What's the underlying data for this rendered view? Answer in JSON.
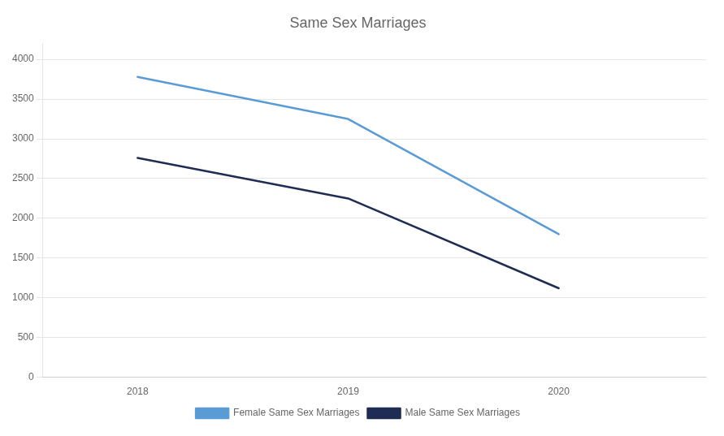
{
  "chart_data": {
    "type": "line",
    "title": "Same Sex Marriages",
    "x": [
      2018,
      2019,
      2020
    ],
    "series": [
      {
        "name": "Female Same Sex Marriages",
        "color": "#5b9bd5",
        "values": [
          3780,
          3250,
          1800
        ]
      },
      {
        "name": "Male Same Sex Marriages",
        "color": "#1f2d54",
        "values": [
          2760,
          2250,
          1120
        ]
      }
    ],
    "xlim": [
      2017.55,
      2020.7
    ],
    "xticks": [
      2018,
      2019,
      2020
    ],
    "ylim": [
      0,
      4200
    ],
    "yticks": [
      0,
      500,
      1000,
      1500,
      2000,
      2500,
      3000,
      3500,
      4000
    ],
    "grid": "y",
    "legend": "bottom"
  }
}
